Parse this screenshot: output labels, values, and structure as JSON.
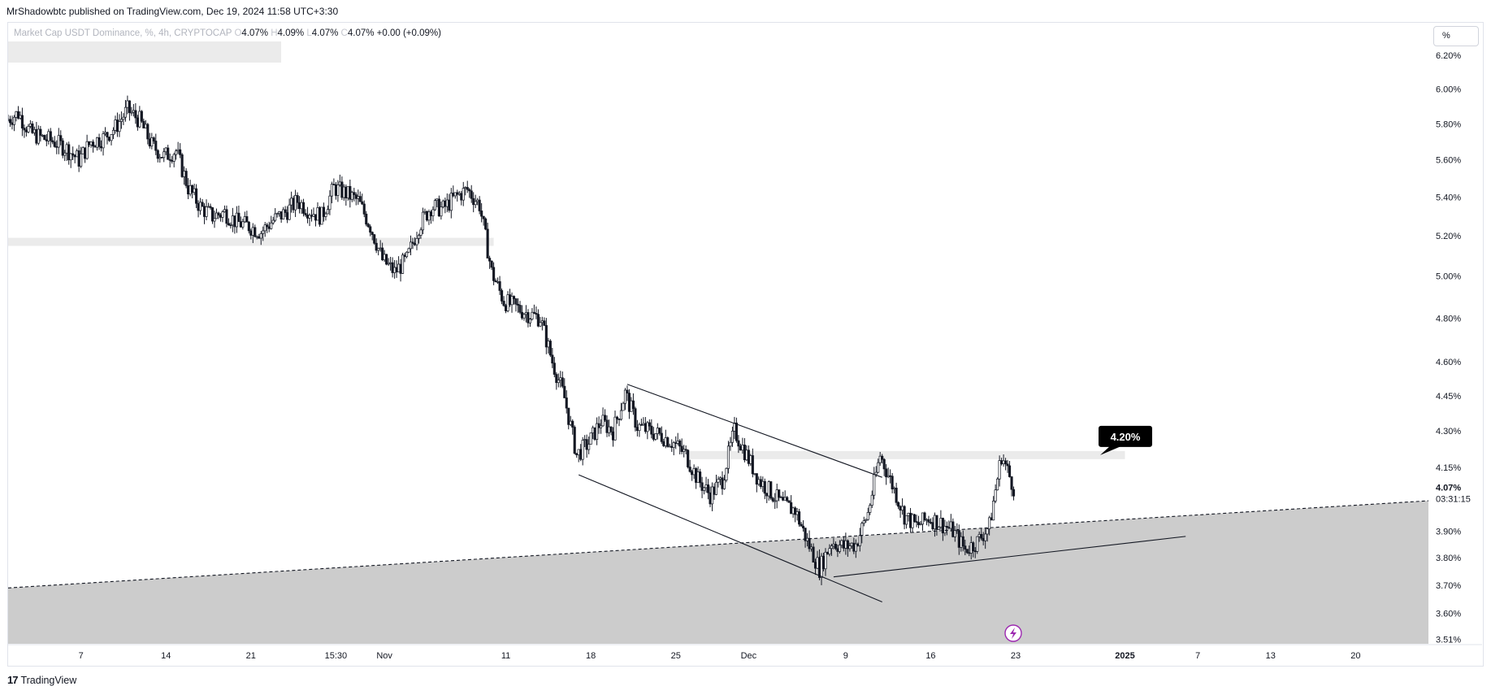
{
  "publisher_line": "MrShadowbtc published on TradingView.com, Dec 19, 2024 11:58 UTC+3:30",
  "legend": {
    "symbol": "Market Cap USDT Dominance, %, 4h, CRYPTOCAP",
    "o_label": "O",
    "o_value": "4.07%",
    "h_label": "H",
    "h_value": "4.09%",
    "l_label": "L",
    "l_value": "4.07%",
    "c_label": "C",
    "c_value": "4.07%",
    "change": "+0.00 (+0.09%)"
  },
  "unit_button": "%",
  "footer": {
    "logo_mark": "17",
    "logo_text": "TradingView"
  },
  "colors": {
    "candle": "#131722",
    "zone_fill": "#cccccc",
    "band_fill": "#ebebeb",
    "badge_bg": "#000000",
    "badge_text": "#ffffff",
    "grid": "#ffffff",
    "icon_accent": "#9c27b0"
  },
  "chart_data": {
    "type": "candlestick",
    "timeframe": "4h",
    "y_unit": "%",
    "ylim": [
      3.5,
      6.3
    ],
    "y_scale": "log",
    "grid": false,
    "y_ticks": [
      "6.20%",
      "6.00%",
      "5.80%",
      "5.60%",
      "5.40%",
      "5.20%",
      "5.00%",
      "4.80%",
      "4.60%",
      "4.45%",
      "4.30%",
      "4.15%",
      "3.90%",
      "3.80%",
      "3.70%",
      "3.60%",
      "3.51%"
    ],
    "y_tick_values": [
      6.2,
      6.0,
      5.8,
      5.6,
      5.4,
      5.2,
      5.0,
      4.8,
      4.6,
      4.45,
      4.3,
      4.15,
      3.9,
      3.8,
      3.7,
      3.6,
      3.51
    ],
    "x_ticks": [
      "7",
      "14",
      "21",
      "15:30",
      "Nov",
      "11",
      "18",
      "25",
      "Dec",
      "9",
      "16",
      "23",
      "2025",
      "7",
      "13",
      "20"
    ],
    "x_tick_dates": [
      "2024-10-07",
      "2024-10-14",
      "2024-10-21",
      "2024-10-28",
      "2024-11-01",
      "2024-11-11",
      "2024-11-18",
      "2024-11-25",
      "2024-12-01",
      "2024-12-09",
      "2024-12-16",
      "2024-12-23",
      "2025-01-01",
      "2025-01-07",
      "2025-01-13",
      "2025-01-20"
    ],
    "last_price_label": "4.07%",
    "countdown": "03:31:15",
    "price_path": [
      [
        "2024-10-01",
        5.82
      ],
      [
        "2024-10-02",
        5.86
      ],
      [
        "2024-10-03",
        5.75
      ],
      [
        "2024-10-04",
        5.72
      ],
      [
        "2024-10-05",
        5.7
      ],
      [
        "2024-10-06",
        5.66
      ],
      [
        "2024-10-07",
        5.6
      ],
      [
        "2024-10-08",
        5.7
      ],
      [
        "2024-10-09",
        5.72
      ],
      [
        "2024-10-10",
        5.78
      ],
      [
        "2024-10-11",
        5.88
      ],
      [
        "2024-10-12",
        5.82
      ],
      [
        "2024-10-13",
        5.68
      ],
      [
        "2024-10-14",
        5.62
      ],
      [
        "2024-10-15",
        5.65
      ],
      [
        "2024-10-16",
        5.45
      ],
      [
        "2024-10-17",
        5.35
      ],
      [
        "2024-10-18",
        5.3
      ],
      [
        "2024-10-19",
        5.32
      ],
      [
        "2024-10-20",
        5.27
      ],
      [
        "2024-10-21",
        5.25
      ],
      [
        "2024-10-22",
        5.22
      ],
      [
        "2024-10-23",
        5.28
      ],
      [
        "2024-10-24",
        5.32
      ],
      [
        "2024-10-25",
        5.38
      ],
      [
        "2024-10-26",
        5.33
      ],
      [
        "2024-10-27",
        5.3
      ],
      [
        "2024-10-28",
        5.45
      ],
      [
        "2024-10-29",
        5.42
      ],
      [
        "2024-10-30",
        5.38
      ],
      [
        "2024-10-31",
        5.25
      ],
      [
        "2024-11-01",
        5.08
      ],
      [
        "2024-11-02",
        5.02
      ],
      [
        "2024-11-03",
        5.08
      ],
      [
        "2024-11-04",
        5.25
      ],
      [
        "2024-11-05",
        5.35
      ],
      [
        "2024-11-06",
        5.34
      ],
      [
        "2024-11-07",
        5.4
      ],
      [
        "2024-11-08",
        5.44
      ],
      [
        "2024-11-09",
        5.36
      ],
      [
        "2024-11-10",
        5.02
      ],
      [
        "2024-11-11",
        4.88
      ],
      [
        "2024-11-12",
        4.85
      ],
      [
        "2024-11-13",
        4.82
      ],
      [
        "2024-11-14",
        4.8
      ],
      [
        "2024-11-15",
        4.6
      ],
      [
        "2024-11-16",
        4.44
      ],
      [
        "2024-11-17",
        4.2
      ],
      [
        "2024-11-18",
        4.25
      ],
      [
        "2024-11-19",
        4.34
      ],
      [
        "2024-11-20",
        4.3
      ],
      [
        "2024-11-21",
        4.46
      ],
      [
        "2024-11-22",
        4.32
      ],
      [
        "2024-11-23",
        4.3
      ],
      [
        "2024-11-24",
        4.28
      ],
      [
        "2024-11-25",
        4.25
      ],
      [
        "2024-11-26",
        4.2
      ],
      [
        "2024-11-27",
        4.1
      ],
      [
        "2024-11-28",
        4.04
      ],
      [
        "2024-11-29",
        4.1
      ],
      [
        "2024-11-30",
        4.3
      ],
      [
        "2024-12-01",
        4.2
      ],
      [
        "2024-12-02",
        4.1
      ],
      [
        "2024-12-03",
        4.05
      ],
      [
        "2024-12-04",
        4.0
      ],
      [
        "2024-12-05",
        3.98
      ],
      [
        "2024-12-06",
        3.86
      ],
      [
        "2024-12-07",
        3.76
      ],
      [
        "2024-12-08",
        3.86
      ],
      [
        "2024-12-09",
        3.84
      ],
      [
        "2024-12-10",
        3.85
      ],
      [
        "2024-12-11",
        3.97
      ],
      [
        "2024-12-12",
        4.2
      ],
      [
        "2024-12-13",
        4.08
      ],
      [
        "2024-12-14",
        3.96
      ],
      [
        "2024-12-15",
        3.92
      ],
      [
        "2024-12-16",
        3.95
      ],
      [
        "2024-12-17",
        3.93
      ],
      [
        "2024-12-18",
        3.9
      ],
      [
        "2024-12-19",
        3.83
      ],
      [
        "2024-12-20",
        3.86
      ],
      [
        "2024-12-21",
        3.92
      ],
      [
        "2024-12-22",
        4.2
      ],
      [
        "2024-12-23",
        4.07
      ]
    ],
    "annotations": [
      {
        "type": "horizontal-band",
        "from": "2024-10-01",
        "to": "2024-11-10",
        "y": 5.17
      },
      {
        "type": "horizontal-band",
        "from": "2024-11-26",
        "to": "2025-01-01",
        "y": 4.2
      },
      {
        "type": "price-label",
        "text": "4.20%",
        "y": 4.2
      },
      {
        "type": "trendline",
        "style": "dashed",
        "from": [
          "2024-10-01",
          3.69
        ],
        "to": [
          "2025-01-27",
          4.02
        ]
      },
      {
        "type": "trendline",
        "style": "solid",
        "from": [
          "2024-11-21",
          4.5
        ],
        "to": [
          "2024-12-12",
          4.11
        ]
      },
      {
        "type": "trendline",
        "style": "solid",
        "from": [
          "2024-11-17",
          4.12
        ],
        "to": [
          "2024-12-12",
          3.64
        ]
      },
      {
        "type": "trendline",
        "style": "solid",
        "from": [
          "2024-12-08",
          3.73
        ],
        "to": [
          "2025-01-06",
          3.88
        ]
      }
    ]
  }
}
